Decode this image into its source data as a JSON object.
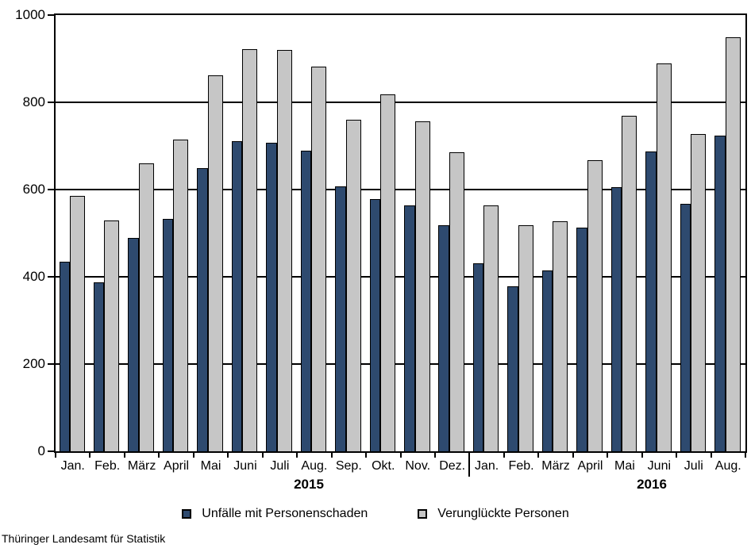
{
  "chart_data": {
    "type": "bar",
    "title": "",
    "categories": [
      "Jan.",
      "Feb.",
      "März",
      "April",
      "Mai",
      "Juni",
      "Juli",
      "Aug.",
      "Sep.",
      "Okt.",
      "Nov.",
      "Dez.",
      "Jan.",
      "Feb.",
      "März",
      "April",
      "Mai",
      "Juni",
      "Juli",
      "Aug."
    ],
    "year_groups": [
      {
        "label": "2015",
        "span": 12
      },
      {
        "label": "2016",
        "span": 8
      }
    ],
    "series": [
      {
        "name": "Unfälle mit Personenschaden",
        "color": "#2E4A6F",
        "values": [
          435,
          388,
          489,
          533,
          650,
          711,
          708,
          690,
          607,
          579,
          563,
          519,
          431,
          379,
          414,
          512,
          606,
          687,
          568,
          724
        ]
      },
      {
        "name": "Verunglückte Personen",
        "color": "#C6C6C6",
        "values": [
          585,
          529,
          660,
          715,
          861,
          921,
          920,
          882,
          760,
          819,
          757,
          686,
          563,
          518,
          528,
          668,
          769,
          890,
          727,
          950
        ]
      }
    ],
    "ylim": [
      0,
      1000
    ],
    "yticks": [
      0,
      200,
      400,
      600,
      800,
      1000
    ],
    "grid": "horizontal",
    "legend_position": "bottom",
    "axis_color": "#000000"
  },
  "footer": {
    "source": "Thüringer Landesamt für Statistik"
  }
}
